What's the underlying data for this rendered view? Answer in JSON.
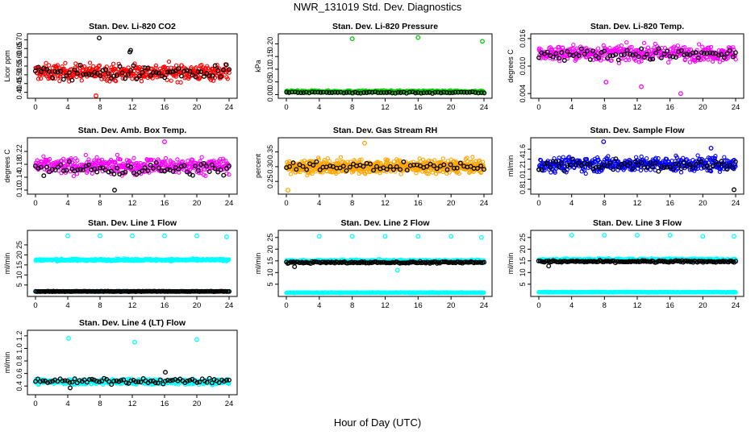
{
  "page": {
    "title": "NWR_131019  Std. Dev. Diagnostics",
    "xlabel": "Hour of Day (UTC)"
  },
  "chart_data": [
    {
      "type": "scatter",
      "title": "Stan. Dev. Li-820 CO2",
      "ylabel": "Licor ppm",
      "xlim": [
        0,
        24
      ],
      "xticks": [
        0,
        4,
        8,
        12,
        16,
        20,
        24
      ],
      "ylim": [
        0.38,
        0.72
      ],
      "yticks": [
        0.4,
        0.45,
        0.5,
        0.55,
        0.6,
        0.65,
        0.7
      ],
      "ytick_labels": [
        "0.40",
        "0.45",
        "0.50",
        "0.55",
        "0.60",
        "0.65",
        "0.70"
      ],
      "series": [
        {
          "name": "main",
          "color": "#ff0000",
          "symbol": "circle",
          "n": 420,
          "center": 0.515,
          "spread": 0.045,
          "outliers": [
            [
              7.5,
              0.38
            ]
          ]
        },
        {
          "name": "black",
          "color": "#000000",
          "symbol": "circle",
          "n": 70,
          "center": 0.51,
          "spread": 0.04,
          "outliers": [
            [
              7.9,
              0.71
            ],
            [
              11.8,
              0.64
            ],
            [
              11.7,
              0.63
            ]
          ]
        }
      ]
    },
    {
      "type": "scatter",
      "title": "Stan. Dev. Li-820 Pressure",
      "ylabel": "kPa",
      "xlim": [
        0,
        24
      ],
      "xticks": [
        0,
        4,
        8,
        12,
        16,
        20,
        24
      ],
      "ylim": [
        -0.005,
        0.23
      ],
      "yticks": [
        0.0,
        0.05,
        0.1,
        0.15,
        0.2
      ],
      "ytick_labels": [
        "0.00",
        "0.05",
        "0.10",
        "0.15",
        "0.20"
      ],
      "series": [
        {
          "name": "main",
          "color": "#00cc00",
          "symbol": "circle",
          "n": 420,
          "center": 0.012,
          "spread": 0.004,
          "outliers": [
            [
              8.0,
              0.22
            ],
            [
              16.0,
              0.225
            ],
            [
              23.8,
              0.21
            ]
          ]
        },
        {
          "name": "black",
          "color": "#000000",
          "symbol": "circle",
          "n": 70,
          "center": 0.008,
          "spread": 0.003,
          "outliers": []
        }
      ]
    },
    {
      "type": "scatter",
      "title": "Stan. Dev. Li-820 Temp.",
      "ylabel": "degrees C",
      "xlim": [
        0,
        24
      ],
      "xticks": [
        0,
        4,
        8,
        12,
        16,
        20,
        24
      ],
      "ylim": [
        0.0035,
        0.0165
      ],
      "yticks": [
        0.004,
        0.01,
        0.016
      ],
      "ytick_labels": [
        "0.004",
        "0.010",
        "0.016"
      ],
      "series": [
        {
          "name": "main",
          "color": "#ff00ff",
          "symbol": "circle",
          "n": 420,
          "center": 0.0128,
          "spread": 0.0016,
          "outliers": [
            [
              12.5,
              0.0055
            ],
            [
              17.3,
              0.004
            ],
            [
              8.2,
              0.0065
            ]
          ]
        },
        {
          "name": "black",
          "color": "#000000",
          "symbol": "circle",
          "n": 70,
          "center": 0.0125,
          "spread": 0.0013,
          "outliers": []
        }
      ]
    },
    {
      "type": "scatter",
      "title": "Stan. Dev. Amb. Box Temp.",
      "ylabel": "degrees C",
      "xlim": [
        0,
        24
      ],
      "xticks": [
        0,
        4,
        8,
        12,
        16,
        20,
        24
      ],
      "ylim": [
        0.095,
        0.255
      ],
      "yticks": [
        0.1,
        0.14,
        0.18,
        0.22
      ],
      "ytick_labels": [
        "0.10",
        "0.14",
        "0.18",
        "0.22"
      ],
      "series": [
        {
          "name": "main",
          "color": "#ff00ff",
          "symbol": "circle",
          "n": 420,
          "center": 0.175,
          "spread": 0.024,
          "outliers": [
            [
              16.0,
              0.25
            ]
          ]
        },
        {
          "name": "black",
          "color": "#000000",
          "symbol": "circle",
          "n": 70,
          "center": 0.165,
          "spread": 0.02,
          "outliers": [
            [
              9.8,
              0.1
            ]
          ]
        }
      ]
    },
    {
      "type": "scatter",
      "title": "Stan. Dev. Gas Stream RH",
      "ylabel": "percent",
      "xlim": [
        0,
        24
      ],
      "xticks": [
        0,
        4,
        8,
        12,
        16,
        20,
        24
      ],
      "ylim": [
        0.215,
        0.39
      ],
      "yticks": [
        0.25,
        0.3,
        0.35
      ],
      "ytick_labels": [
        "0.25",
        "0.30",
        "0.35"
      ],
      "series": [
        {
          "name": "main",
          "color": "#ffa500",
          "symbol": "circle",
          "n": 700,
          "center": 0.3,
          "spread": 0.022,
          "outliers": [
            [
              9.5,
              0.38
            ],
            [
              0.2,
              0.22
            ]
          ]
        },
        {
          "name": "black",
          "color": "#000000",
          "symbol": "circle",
          "n": 60,
          "center": 0.3,
          "spread": 0.015,
          "outliers": []
        }
      ]
    },
    {
      "type": "scatter",
      "title": "Stan. Dev. Sample Flow",
      "ylabel": "ml/min",
      "xlim": [
        0,
        24
      ],
      "xticks": [
        0,
        4,
        8,
        12,
        16,
        20,
        24
      ],
      "ylim": [
        0.75,
        1.78
      ],
      "yticks": [
        0.8,
        1.0,
        1.2,
        1.4,
        1.6
      ],
      "ytick_labels": [
        "0.8",
        "1.0",
        "1.2",
        "1.4",
        "1.6"
      ],
      "series": [
        {
          "name": "main",
          "color": "#0000ff",
          "symbol": "circle",
          "n": 450,
          "center": 1.3,
          "spread": 0.14,
          "outliers": [
            [
              7.9,
              1.75
            ],
            [
              21.0,
              1.62
            ]
          ]
        },
        {
          "name": "black",
          "color": "#000000",
          "symbol": "circle",
          "n": 70,
          "center": 1.28,
          "spread": 0.12,
          "outliers": [
            [
              23.8,
              0.79
            ]
          ]
        }
      ]
    },
    {
      "type": "scatter",
      "title": "Stan. Dev. Line 1 Flow",
      "ylabel": "ml/min",
      "xlim": [
        0,
        24
      ],
      "xticks": [
        0,
        4,
        8,
        12,
        16,
        20,
        24
      ],
      "ylim": [
        0.5,
        31
      ],
      "yticks": [
        5,
        10,
        15,
        20,
        25
      ],
      "ytick_labels": [
        "5",
        "10",
        "15",
        "20",
        "25"
      ],
      "series": [
        {
          "name": "main",
          "color": "#00ffff",
          "symbol": "circle",
          "n": 420,
          "center": 17.5,
          "spread": 0.5,
          "outliers": [
            [
              4,
              29.5
            ],
            [
              8,
              29.5
            ],
            [
              12,
              29.5
            ],
            [
              16,
              29.5
            ],
            [
              20,
              29.5
            ],
            [
              23.7,
              29.0
            ]
          ]
        },
        {
          "name": "low",
          "color": "#00ffff",
          "symbol": "circle",
          "n": 250,
          "center": 1.8,
          "spread": 0.15,
          "outliers": []
        },
        {
          "name": "black",
          "color": "#000000",
          "symbol": "circle",
          "n": 140,
          "center": 1.8,
          "spread": 0.1,
          "outliers": []
        }
      ]
    },
    {
      "type": "scatter",
      "title": "Stan. Dev. Line 2 Flow",
      "ylabel": "ml/min",
      "xlim": [
        0,
        24
      ],
      "xticks": [
        0,
        4,
        8,
        12,
        16,
        20,
        24
      ],
      "ylim": [
        0.8,
        27
      ],
      "yticks": [
        5,
        10,
        15,
        20,
        25
      ],
      "ytick_labels": [
        "5",
        "10",
        "15",
        "20",
        "25"
      ],
      "series": [
        {
          "name": "main",
          "color": "#00ffff",
          "symbol": "circle",
          "n": 420,
          "center": 15.0,
          "spread": 0.5,
          "outliers": [
            [
              4,
              25.5
            ],
            [
              8,
              25.5
            ],
            [
              12,
              25.5
            ],
            [
              16,
              25.5
            ],
            [
              20,
              25.5
            ],
            [
              23.7,
              25.0
            ],
            [
              13.5,
              11.0
            ]
          ]
        },
        {
          "name": "low",
          "color": "#00ffff",
          "symbol": "circle",
          "n": 300,
          "center": 1.4,
          "spread": 0.15,
          "outliers": []
        },
        {
          "name": "black",
          "color": "#000000",
          "symbol": "circle",
          "n": 140,
          "center": 14.3,
          "spread": 0.35,
          "outliers": [
            [
              1.0,
              12.5
            ]
          ]
        }
      ]
    },
    {
      "type": "scatter",
      "title": "Stan. Dev. Line 3 Flow",
      "ylabel": "ml/min",
      "xlim": [
        0,
        24
      ],
      "xticks": [
        0,
        4,
        8,
        12,
        16,
        20,
        24
      ],
      "ylim": [
        0.8,
        27
      ],
      "yticks": [
        5,
        10,
        15,
        20,
        25
      ],
      "ytick_labels": [
        "5",
        "10",
        "15",
        "20",
        "25"
      ],
      "series": [
        {
          "name": "main",
          "color": "#00ffff",
          "symbol": "circle",
          "n": 420,
          "center": 15.5,
          "spread": 0.55,
          "outliers": [
            [
              4,
              26.0
            ],
            [
              8,
              26.0
            ],
            [
              12,
              26.0
            ],
            [
              16,
              26.0
            ],
            [
              20,
              25.5
            ],
            [
              23.8,
              25.5
            ]
          ]
        },
        {
          "name": "low",
          "color": "#00ffff",
          "symbol": "circle",
          "n": 300,
          "center": 1.6,
          "spread": 0.15,
          "outliers": []
        },
        {
          "name": "black",
          "color": "#000000",
          "symbol": "circle",
          "n": 140,
          "center": 14.7,
          "spread": 0.4,
          "outliers": [
            [
              1.2,
              12.8
            ]
          ]
        }
      ]
    },
    {
      "type": "scatter",
      "title": "Stan. Dev. Line 4 (LT) Flow",
      "ylabel": "ml/min",
      "xlim": [
        0,
        24
      ],
      "xticks": [
        0,
        4,
        8,
        12,
        16,
        20,
        24
      ],
      "ylim": [
        0.3,
        1.25
      ],
      "yticks": [
        0.4,
        0.6,
        0.8,
        1.0,
        1.2
      ],
      "ytick_labels": [
        "0.4",
        "0.6",
        "0.8",
        "1.0",
        "1.2"
      ],
      "series": [
        {
          "name": "main",
          "color": "#00ffff",
          "symbol": "circle",
          "n": 500,
          "center": 0.47,
          "spread": 0.045,
          "outliers": [
            [
              4.1,
              1.16
            ],
            [
              12.3,
              1.1
            ],
            [
              20.0,
              1.14
            ]
          ]
        },
        {
          "name": "black",
          "color": "#000000",
          "symbol": "circle",
          "n": 80,
          "center": 0.48,
          "spread": 0.04,
          "outliers": [
            [
              16.1,
              0.62
            ],
            [
              4.3,
              0.37
            ]
          ]
        }
      ]
    }
  ]
}
